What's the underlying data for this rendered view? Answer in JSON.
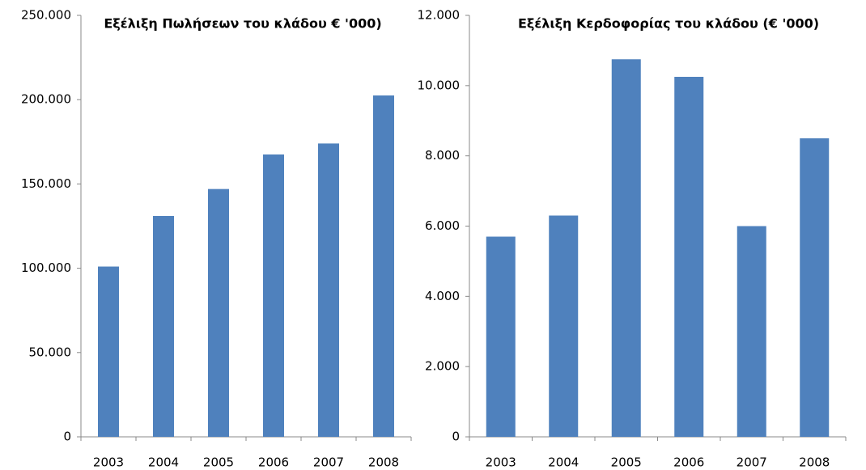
{
  "chart_data": [
    {
      "type": "bar",
      "title": "Εξέλιξη Πωλήσεων του κλάδου € '000)",
      "categories": [
        "2003",
        "2004",
        "2005",
        "2006",
        "2007",
        "2008"
      ],
      "values": [
        101000,
        131000,
        147000,
        167500,
        174000,
        202500
      ],
      "color": "#4f81bd",
      "ylim": [
        0,
        250000
      ],
      "yticks": [
        0,
        {
          "value": 50000,
          "label": "50.000"
        },
        {
          "value": 100000,
          "label": "100.000"
        },
        {
          "value": 150000,
          "label": "150.000"
        },
        {
          "value": 200000,
          "label": "200.000"
        },
        {
          "value": 250000,
          "label": "250.000"
        }
      ],
      "grid": false
    },
    {
      "type": "bar",
      "title": "Εξέλιξη Κερδοφορίας του κλάδου (€ '000)",
      "categories": [
        "2003",
        "2004",
        "2005",
        "2006",
        "2007",
        "2008"
      ],
      "values": [
        5700,
        6300,
        10750,
        10250,
        6000,
        8500
      ],
      "color": "#4f81bd",
      "ylim": [
        0,
        12000
      ],
      "yticks": [
        0,
        {
          "value": 2000,
          "label": "2.000"
        },
        {
          "value": 4000,
          "label": "4.000"
        },
        {
          "value": 6000,
          "label": "6.000"
        },
        {
          "value": 8000,
          "label": "8.000"
        },
        {
          "value": 10000,
          "label": "10.000"
        },
        {
          "value": 12000,
          "label": "12.000"
        }
      ],
      "grid": false
    }
  ]
}
